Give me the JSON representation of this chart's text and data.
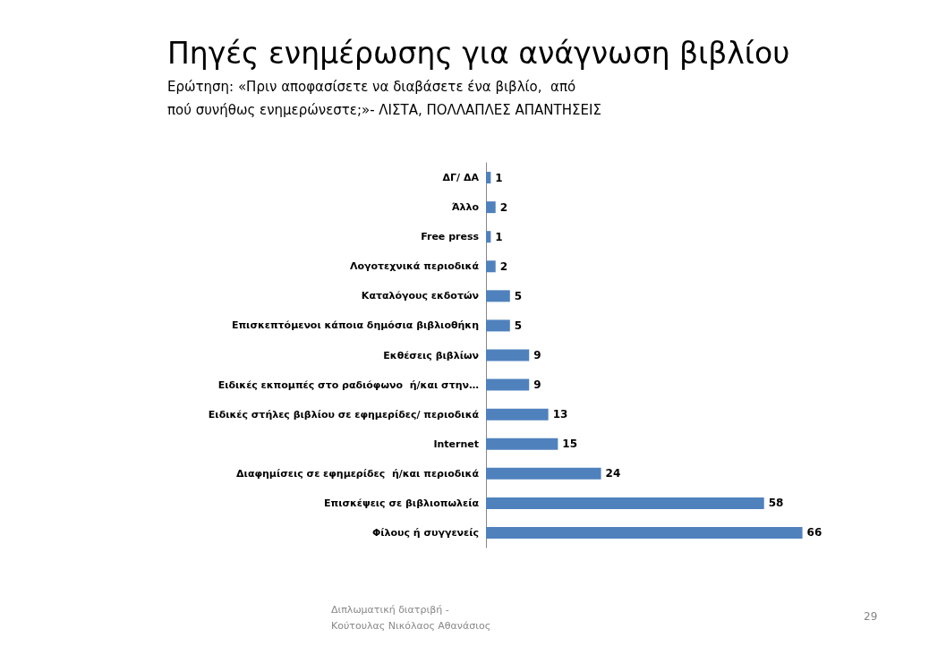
{
  "chart_data": {
    "type": "bar",
    "orientation": "horizontal",
    "title": "Πηγές ενημέρωσης για ανάγνωση βιβλίου",
    "subtitle": "Ερώτηση: «Πριν αποφασίσετε να διαβάσετε ένα βιβλίο,  από πού συνήθως ενημερώνεστε;»- ΛΙΣΤΑ, ΠΟΛΛΑΠΛΕΣ ΑΠΑΝΤΗΣΕΙΣ",
    "categories": [
      "ΔΓ/ ΔΑ",
      "Άλλο",
      "Free press",
      "Λογοτεχνικά περιοδικά",
      "Καταλόγους εκδοτών",
      "Επισκεπτόμενοι κάποια δημόσια βιβλιοθήκη",
      "Εκθέσεις βιβλίων",
      "Ειδικές εκπομπές στο ραδιόφωνο  ή/και στην…",
      "Ειδικές στήλες βιβλίου σε εφημερίδες/ περιοδικά",
      "Internet",
      "Διαφημίσεις σε εφημερίδες  ή/και περιοδικά",
      "Επισκέψεις σε βιβλιοπωλεία",
      "Φίλους ή συγγενείς"
    ],
    "values": [
      1,
      2,
      1,
      2,
      5,
      5,
      9,
      9,
      13,
      15,
      24,
      58,
      66
    ],
    "color": "#4f81bd",
    "data_labels": true,
    "tick_labels": "y",
    "annotations": [
      "Διπλωματική διατριβή - Κούτουλας Νικόλαος Αθανάσιος",
      "29"
    ]
  }
}
